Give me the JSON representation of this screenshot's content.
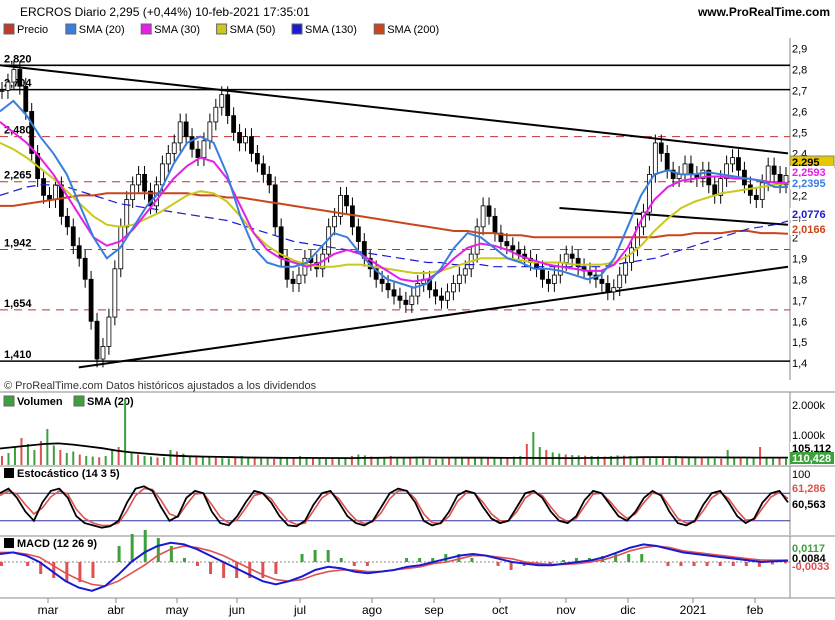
{
  "header": {
    "title": "ERCROS Diario 2,295 (+0,44%) 10-feb-2021 17:35:01",
    "site": "www.ProRealTime.com"
  },
  "price_panel": {
    "legend": [
      {
        "label": "Precio",
        "color": "#c0392b",
        "icon": "checkbox-icon"
      },
      {
        "label": "SMA (20)",
        "color": "#3b7ddd"
      },
      {
        "label": "SMA (30)",
        "color": "#e61ee6"
      },
      {
        "label": "SMA (50)",
        "color": "#c8c81e"
      },
      {
        "label": "SMA (130)",
        "color": "#1a1ad0"
      },
      {
        "label": "SMA (200)",
        "color": "#c8461e"
      }
    ],
    "source_note": "© ProRealTime.com  Datos históricos ajustados a los dividendos"
  },
  "volume_panel": {
    "legend": [
      {
        "label": "Volumen",
        "color": "#000000"
      },
      {
        "label": "SMA (20)",
        "color": "#000000"
      }
    ]
  },
  "stoch_panel": {
    "legend": [
      {
        "label": "Estocástico (14 3 5)",
        "color": "#000000"
      }
    ]
  },
  "macd_panel": {
    "legend": [
      {
        "label": "MACD (12 26 9)",
        "color": "#000000"
      }
    ]
  },
  "chart_data": [
    {
      "type": "candlestick",
      "title": "ERCROS Diario",
      "x_ticks": [
        "mar",
        "abr",
        "may",
        "jun",
        "jul",
        "ago",
        "sep",
        "oct",
        "nov",
        "dic",
        "2021",
        "feb"
      ],
      "y_ticks": [
        1.4,
        1.5,
        1.6,
        1.7,
        1.8,
        1.9,
        2.0,
        2.1,
        2.2,
        2.3,
        2.4,
        2.5,
        2.6,
        2.7,
        2.8,
        2.9
      ],
      "y_tick_labels": [
        "1,4",
        "1,5",
        "1,6",
        "1,7",
        "1,8",
        "1,9",
        "2",
        "2,1",
        "2,2",
        "2,3",
        "2,4",
        "2,5",
        "2,6",
        "2,7",
        "2,8",
        "2,9"
      ],
      "ylim": [
        1.32,
        2.95
      ],
      "horizontal_levels": [
        {
          "value": 2.82,
          "label": "2,820",
          "style": "solid"
        },
        {
          "value": 2.704,
          "label": "2,704",
          "style": "solid"
        },
        {
          "value": 2.48,
          "label": "2,480",
          "style": "dashed"
        },
        {
          "value": 2.265,
          "label": "2,265",
          "style": "dashed"
        },
        {
          "value": 1.942,
          "label": "1,942",
          "style": "dashed"
        },
        {
          "value": 1.654,
          "label": "1,654",
          "style": "dashed"
        },
        {
          "value": 1.41,
          "label": "1,410",
          "style": "solid"
        }
      ],
      "value_badges": [
        {
          "label": "2,295",
          "color": "#e6c800",
          "text_color": "#000000"
        },
        {
          "label": "2,2593",
          "color": "#ffffff",
          "text_color": "#e61ee6"
        },
        {
          "label": "2,2395",
          "color": "#ffffff",
          "text_color": "#3b7ddd"
        },
        {
          "label": "2,0776",
          "color": "#ffffff",
          "text_color": "#1a1ad0"
        },
        {
          "label": "2,0166",
          "color": "#ffffff",
          "text_color": "#c8461e"
        }
      ],
      "price_series": [
        2.7,
        2.74,
        2.8,
        2.72,
        2.6,
        2.4,
        2.28,
        2.2,
        2.18,
        2.25,
        2.1,
        2.05,
        1.96,
        1.9,
        1.8,
        1.6,
        1.42,
        1.48,
        1.62,
        1.85,
        2.05,
        2.18,
        2.25,
        2.3,
        2.22,
        2.15,
        2.25,
        2.35,
        2.4,
        2.45,
        2.55,
        2.48,
        2.42,
        2.38,
        2.46,
        2.55,
        2.62,
        2.68,
        2.58,
        2.5,
        2.45,
        2.48,
        2.4,
        2.35,
        2.3,
        2.25,
        2.05,
        1.9,
        1.8,
        1.78,
        1.82,
        1.9,
        1.88,
        1.85,
        1.92,
        2.05,
        2.1,
        2.2,
        2.15,
        2.05,
        1.98,
        1.9,
        1.85,
        1.8,
        1.78,
        1.75,
        1.72,
        1.7,
        1.68,
        1.72,
        1.78,
        1.8,
        1.75,
        1.72,
        1.7,
        1.74,
        1.78,
        1.82,
        1.85,
        1.92,
        2.05,
        2.15,
        2.1,
        2.02,
        1.98,
        1.96,
        1.94,
        1.92,
        1.9,
        1.88,
        1.85,
        1.8,
        1.78,
        1.82,
        1.88,
        1.92,
        1.9,
        1.86,
        1.84,
        1.82,
        1.8,
        1.78,
        1.74,
        1.76,
        1.82,
        1.88,
        1.95,
        2.05,
        2.12,
        2.3,
        2.45,
        2.4,
        2.32,
        2.28,
        2.3,
        2.35,
        2.3,
        2.28,
        2.32,
        2.25,
        2.2,
        2.28,
        2.35,
        2.38,
        2.32,
        2.25,
        2.2,
        2.18,
        2.26,
        2.34,
        2.3,
        2.25,
        2.295
      ],
      "sma20": [
        2.6,
        2.65,
        2.58,
        2.48,
        2.4,
        2.3,
        2.15,
        2.0,
        1.9,
        1.95,
        2.05,
        2.15,
        2.22,
        2.35,
        2.45,
        2.48,
        2.45,
        2.3,
        2.1,
        1.95,
        1.88,
        1.86,
        1.86,
        1.88,
        1.95,
        2.02,
        2.0,
        1.92,
        1.85,
        1.8,
        1.78,
        1.76,
        1.78,
        1.85,
        1.95,
        2.02,
        2.0,
        1.95,
        1.9,
        1.88,
        1.85,
        1.85,
        1.84,
        1.82,
        1.8,
        1.82,
        1.9,
        2.05,
        2.2,
        2.3,
        2.32,
        2.3,
        2.3,
        2.31,
        2.3,
        2.29,
        2.28,
        2.27,
        2.24,
        2.2395
      ],
      "sma30": [
        2.55,
        2.5,
        2.45,
        2.38,
        2.3,
        2.2,
        2.1,
        2.0,
        1.96,
        1.98,
        2.04,
        2.12,
        2.2,
        2.28,
        2.34,
        2.38,
        2.36,
        2.28,
        2.15,
        2.02,
        1.94,
        1.9,
        1.88,
        1.86,
        1.88,
        1.92,
        1.94,
        1.92,
        1.88,
        1.84,
        1.8,
        1.79,
        1.8,
        1.84,
        1.9,
        1.95,
        1.97,
        1.96,
        1.94,
        1.91,
        1.89,
        1.87,
        1.86,
        1.85,
        1.84,
        1.84,
        1.87,
        1.95,
        2.08,
        2.18,
        2.24,
        2.27,
        2.28,
        2.29,
        2.29,
        2.28,
        2.28,
        2.27,
        2.26,
        2.2593
      ],
      "sma50": [
        2.45,
        2.42,
        2.38,
        2.33,
        2.28,
        2.22,
        2.16,
        2.1,
        2.06,
        2.05,
        2.06,
        2.09,
        2.12,
        2.16,
        2.2,
        2.22,
        2.21,
        2.17,
        2.1,
        2.02,
        1.96,
        1.92,
        1.89,
        1.87,
        1.86,
        1.86,
        1.87,
        1.87,
        1.86,
        1.85,
        1.84,
        1.83,
        1.83,
        1.84,
        1.86,
        1.88,
        1.9,
        1.9,
        1.9,
        1.89,
        1.88,
        1.88,
        1.88,
        1.87,
        1.87,
        1.87,
        1.88,
        1.91,
        1.96,
        2.03,
        2.09,
        2.14,
        2.17,
        2.19,
        2.21,
        2.22,
        2.23,
        2.24,
        2.25,
        2.26
      ],
      "sma130": [
        2.2,
        2.22,
        2.24,
        2.25,
        2.25,
        2.24,
        2.22,
        2.2,
        2.18,
        2.16,
        2.15,
        2.14,
        2.13,
        2.12,
        2.11,
        2.1,
        2.09,
        2.08,
        2.06,
        2.04,
        2.02,
        2.0,
        1.98,
        1.97,
        1.96,
        1.95,
        1.94,
        1.93,
        1.92,
        1.91,
        1.9,
        1.89,
        1.88,
        1.88,
        1.87,
        1.87,
        1.87,
        1.86,
        1.86,
        1.86,
        1.86,
        1.86,
        1.86,
        1.86,
        1.86,
        1.86,
        1.87,
        1.88,
        1.89,
        1.9,
        1.92,
        1.94,
        1.96,
        1.98,
        2.0,
        2.02,
        2.04,
        2.05,
        2.06,
        2.0776
      ],
      "sma200": [
        2.15,
        2.15,
        2.16,
        2.17,
        2.18,
        2.19,
        2.2,
        2.2,
        2.21,
        2.21,
        2.21,
        2.21,
        2.21,
        2.21,
        2.21,
        2.2,
        2.2,
        2.19,
        2.19,
        2.18,
        2.17,
        2.16,
        2.15,
        2.14,
        2.13,
        2.12,
        2.11,
        2.1,
        2.09,
        2.08,
        2.07,
        2.06,
        2.05,
        2.04,
        2.03,
        2.03,
        2.02,
        2.02,
        2.01,
        2.01,
        2.0,
        2.0,
        2.0,
        2.0,
        2.0,
        2.0,
        2.0,
        2.0,
        2.0,
        2.0,
        2.01,
        2.01,
        2.02,
        2.02,
        2.02,
        2.03,
        2.03,
        2.02,
        2.02,
        2.0166
      ]
    },
    {
      "type": "bar",
      "title": "Volumen",
      "y_tick_labels": [
        "2.000k",
        "1.000k"
      ],
      "y_ticks": [
        2000,
        1000
      ],
      "ylim": [
        0,
        2500
      ],
      "value_badges": [
        {
          "label": "105,112",
          "color": "#ffffff",
          "text_color": "#000000"
        },
        {
          "label": "110,428",
          "color": "#3ca03c",
          "text_color": "#ffffff"
        }
      ],
      "volume": [
        300,
        400,
        600,
        900,
        700,
        500,
        800,
        1200,
        650,
        500,
        400,
        450,
        350,
        300,
        280,
        260,
        300,
        500,
        600,
        2200,
        400,
        350,
        300,
        280,
        250,
        260,
        500,
        450,
        380,
        300,
        320,
        280,
        260,
        240,
        230,
        220,
        260,
        300,
        280,
        240,
        220,
        210,
        200,
        220,
        240,
        260,
        300,
        250,
        230,
        210,
        200,
        220,
        240,
        260,
        300,
        350,
        320,
        280,
        260,
        240,
        300,
        260,
        240,
        230,
        220,
        210,
        200,
        190,
        210,
        230,
        250,
        270,
        260,
        240,
        230,
        220,
        210,
        240,
        260,
        280,
        300,
        700,
        1100,
        600,
        500,
        420,
        380,
        350,
        330,
        320,
        310,
        300,
        290,
        280,
        300,
        320,
        310,
        300,
        290,
        280,
        270,
        260,
        250,
        270,
        300,
        280,
        260,
        250,
        240,
        230,
        220,
        210,
        500,
        260,
        240,
        230,
        220,
        600,
        240,
        230,
        220,
        210
      ],
      "volume_sma20": [
        550,
        600,
        650,
        700,
        720,
        680,
        620,
        560,
        480,
        420,
        380,
        340,
        310,
        290,
        280,
        270,
        260,
        250,
        245,
        240,
        238,
        236,
        234,
        232,
        230,
        235,
        240,
        245,
        248,
        250,
        248,
        246,
        244,
        242,
        240,
        238,
        236,
        234,
        232,
        230,
        232,
        236,
        240,
        250,
        260,
        265,
        262,
        258,
        255,
        252,
        250,
        250,
        248,
        246,
        245
      ]
    },
    {
      "type": "line",
      "title": "Estocástico (14 3 5)",
      "y_ticks": [
        100
      ],
      "y_tick_labels": [
        "100"
      ],
      "ylim": [
        0,
        100
      ],
      "bands": [
        80,
        20
      ],
      "value_badges": [
        {
          "label": "61,286",
          "color": "#ffffff",
          "text_color": "#e05050"
        },
        {
          "label": "60,563",
          "color": "#ffffff",
          "text_color": "#000000"
        }
      ],
      "k": [
        80,
        90,
        70,
        40,
        20,
        60,
        85,
        90,
        70,
        30,
        15,
        10,
        5,
        8,
        20,
        60,
        90,
        95,
        85,
        50,
        20,
        30,
        70,
        85,
        80,
        40,
        15,
        10,
        30,
        60,
        85,
        80,
        60,
        30,
        10,
        8,
        20,
        55,
        80,
        85,
        60,
        30,
        15,
        10,
        20,
        50,
        80,
        90,
        85,
        60,
        20,
        10,
        15,
        40,
        75,
        85,
        80,
        50,
        25,
        15,
        20,
        50,
        80,
        85,
        70,
        40,
        20,
        15,
        30,
        65,
        85,
        80,
        55,
        30,
        20,
        40,
        70,
        85,
        75,
        40,
        15,
        10,
        20,
        55,
        80,
        85,
        60,
        30,
        15,
        25,
        60,
        80,
        85,
        60
      ],
      "d": [
        75,
        85,
        78,
        55,
        35,
        48,
        72,
        85,
        78,
        45,
        25,
        15,
        10,
        10,
        15,
        42,
        75,
        90,
        88,
        65,
        35,
        28,
        55,
        78,
        80,
        55,
        28,
        15,
        22,
        48,
        75,
        80,
        68,
        42,
        20,
        12,
        15,
        42,
        70,
        82,
        68,
        42,
        22,
        14,
        18,
        38,
        68,
        85,
        86,
        68,
        35,
        16,
        14,
        30,
        62,
        80,
        80,
        60,
        35,
        20,
        20,
        40,
        70,
        82,
        75,
        50,
        28,
        18,
        25,
        52,
        78,
        80,
        62,
        40,
        25,
        35,
        60,
        80,
        78,
        52,
        25,
        15,
        18,
        42,
        70,
        82,
        68,
        42,
        22,
        22,
        48,
        72,
        82,
        68
      ]
    },
    {
      "type": "bar",
      "title": "MACD (12 26 9)",
      "value_badges": [
        {
          "label": "0,0117",
          "color": "#ffffff",
          "text_color": "#3ca03c"
        },
        {
          "label": "0,0084",
          "color": "#ffffff",
          "text_color": "#000000"
        },
        {
          "label": "-0,0033",
          "color": "#ffffff",
          "text_color": "#e05050"
        }
      ],
      "macd": [
        0.05,
        0.06,
        0.04,
        0.0,
        -0.06,
        -0.12,
        -0.16,
        -0.18,
        -0.15,
        -0.08,
        0.0,
        0.06,
        0.1,
        0.12,
        0.11,
        0.08,
        0.04,
        0.0,
        -0.04,
        -0.08,
        -0.12,
        -0.14,
        -0.12,
        -0.09,
        -0.05,
        -0.03,
        -0.04,
        -0.06,
        -0.07,
        -0.06,
        -0.05,
        -0.03,
        -0.02,
        0.0,
        0.02,
        0.04,
        0.05,
        0.04,
        0.02,
        0.0,
        -0.01,
        -0.02,
        -0.02,
        -0.01,
        0.0,
        0.01,
        0.03,
        0.06,
        0.09,
        0.11,
        0.1,
        0.08,
        0.06,
        0.05,
        0.04,
        0.03,
        0.02,
        0.01,
        0.0,
        0.005,
        0.0084
      ],
      "signal": [
        0.06,
        0.06,
        0.05,
        0.03,
        -0.02,
        -0.07,
        -0.11,
        -0.14,
        -0.15,
        -0.12,
        -0.07,
        -0.02,
        0.04,
        0.08,
        0.1,
        0.09,
        0.07,
        0.04,
        0.0,
        -0.04,
        -0.08,
        -0.11,
        -0.12,
        -0.11,
        -0.08,
        -0.06,
        -0.05,
        -0.05,
        -0.06,
        -0.06,
        -0.05,
        -0.04,
        -0.03,
        -0.01,
        0.0,
        0.02,
        0.04,
        0.04,
        0.03,
        0.02,
        0.0,
        -0.01,
        -0.015,
        -0.015,
        -0.01,
        0.0,
        0.015,
        0.04,
        0.07,
        0.09,
        0.1,
        0.09,
        0.07,
        0.06,
        0.05,
        0.04,
        0.03,
        0.02,
        0.012,
        0.011,
        0.0117
      ]
    }
  ]
}
